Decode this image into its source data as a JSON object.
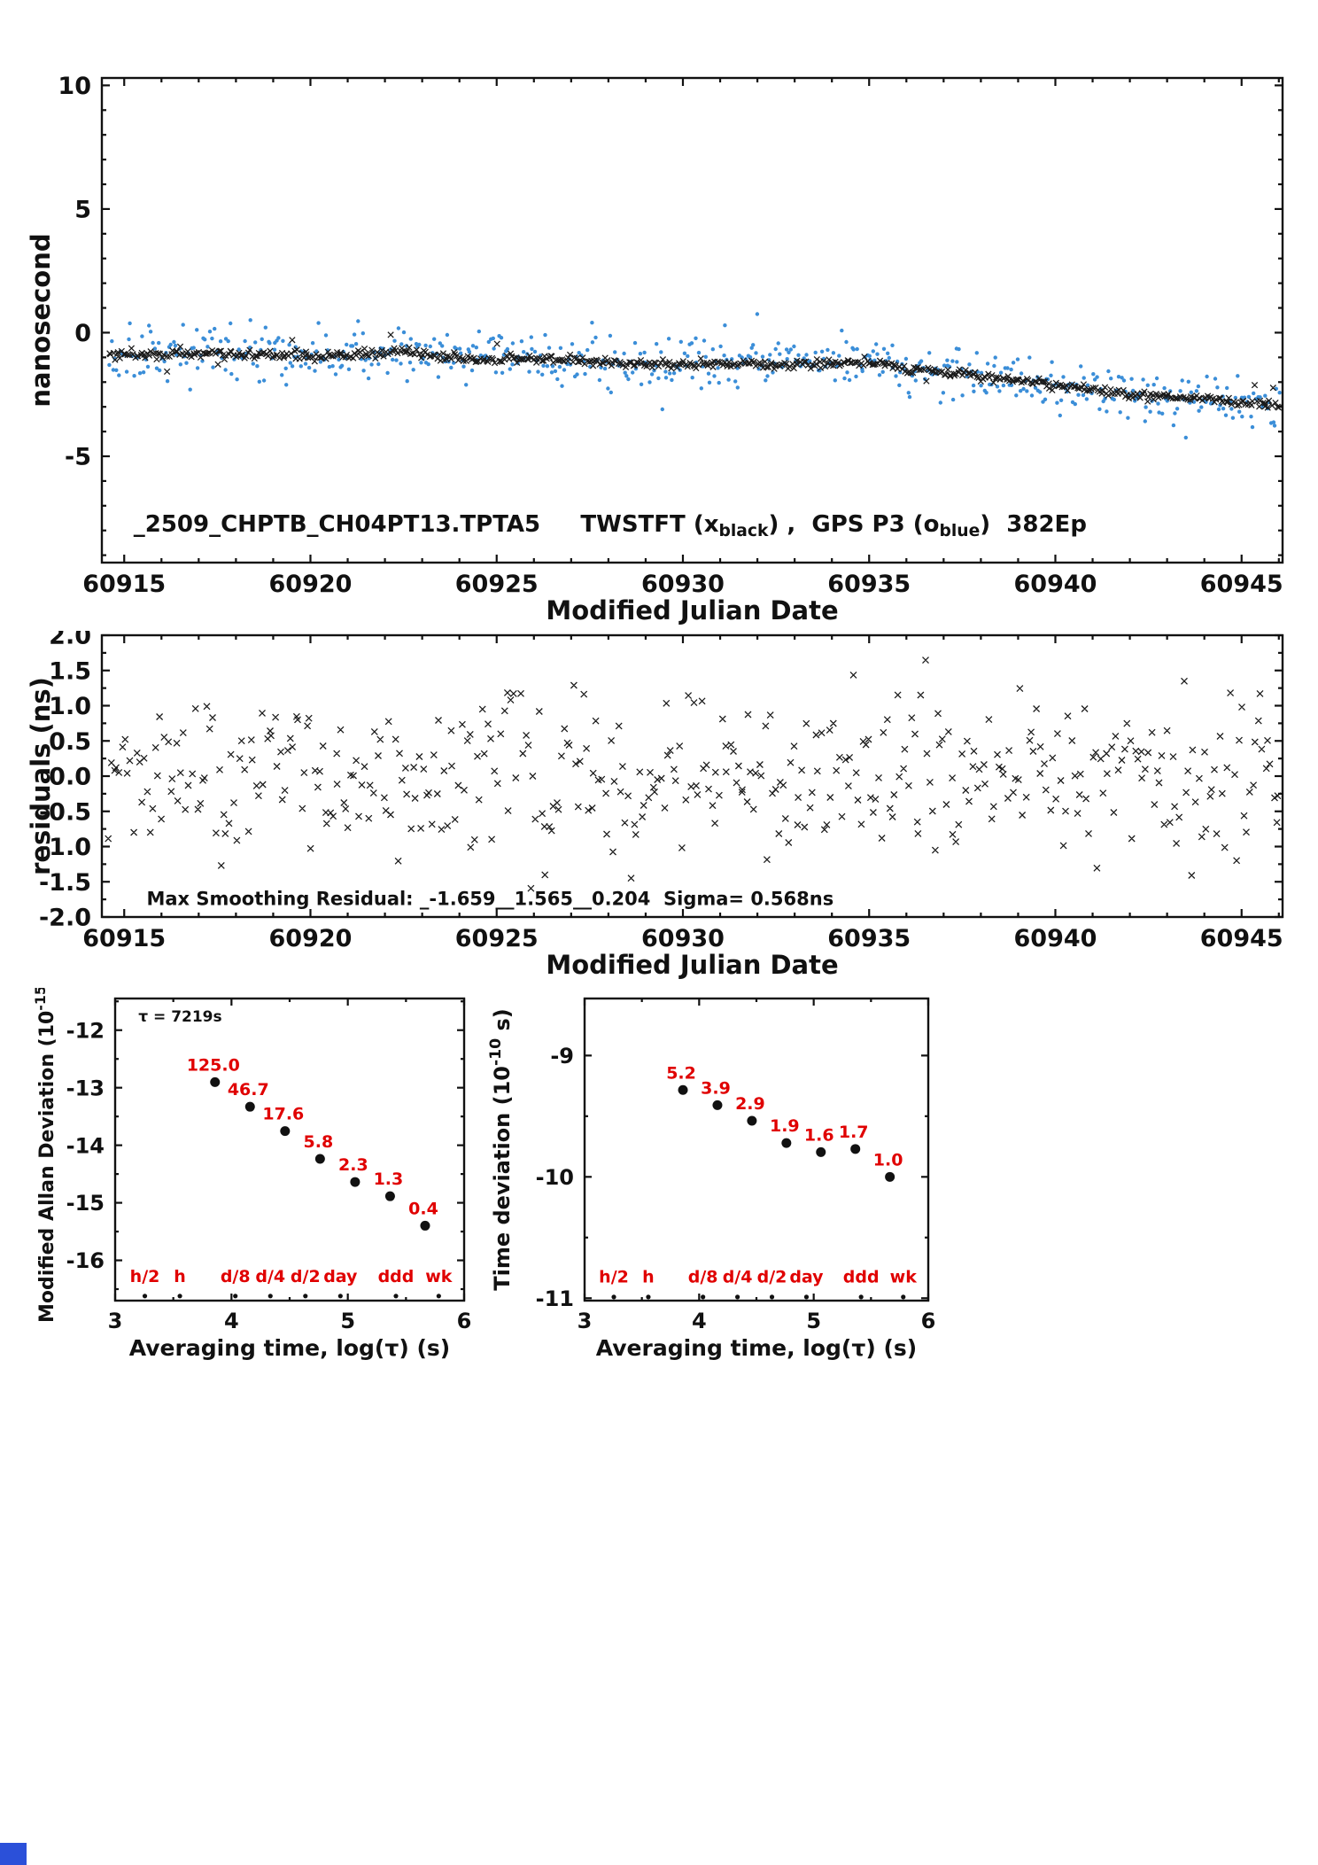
{
  "page": {
    "background": "#ffffff",
    "corner_square_color": "#2b50d9"
  },
  "colors": {
    "black": "#111111",
    "red": "#e00000",
    "blue": "#3b8ed8"
  },
  "chart_data": [
    {
      "id": "top-timeseries",
      "type": "scatter",
      "title": "",
      "xlabel": "Modified Julian Date",
      "ylabel": "nanosecond",
      "xlim": [
        60914.4,
        60946.1
      ],
      "ylim": [
        -9.3,
        10.3
      ],
      "xticks": [
        {
          "v": 60915,
          "label": "60915"
        },
        {
          "v": 60920,
          "label": "60920"
        },
        {
          "v": 60925,
          "label": "60925"
        },
        {
          "v": 60930,
          "label": "60930"
        },
        {
          "v": 60935,
          "label": "60935"
        },
        {
          "v": 60940,
          "label": "60940"
        },
        {
          "v": 60945,
          "label": "60945"
        }
      ],
      "yticks": [
        {
          "v": -5,
          "label": "-5"
        },
        {
          "v": 0,
          "label": "0"
        },
        {
          "v": 5,
          "label": "5"
        },
        {
          "v": 10,
          "label": "10"
        }
      ],
      "xminor_step": 1,
      "yminor_step": 1,
      "annotations": [
        {
          "x": 60915.25,
          "y": -8.05,
          "size": 26,
          "color": "#111111",
          "rich": [
            {
              "t": "_2509_CHPTB_CH04PT13.TPTA5     TWSTFT (x"
            },
            {
              "t": "black",
              "sub": true
            },
            {
              "t": ") ,  GPS P3 (o"
            },
            {
              "t": "blue",
              "sub": true
            },
            {
              "t": ")  382Ep"
            }
          ]
        }
      ],
      "series": [
        {
          "name": "GPS P3 (o blue)",
          "marker": "dot",
          "size": 2.2,
          "color": "#3b8ed8",
          "gen": {
            "seed": 11,
            "n": 620,
            "x0": 60914.6,
            "x1": 60946.0,
            "noise": 0.52,
            "outlier_p": 0.05,
            "outlier_amp": 1.5,
            "trend": [
              [
                60914.6,
                -0.85
              ],
              [
                60916,
                -0.9
              ],
              [
                60917.5,
                -0.8
              ],
              [
                60919,
                -0.95
              ],
              [
                60920.5,
                -0.9
              ],
              [
                60922,
                -0.8
              ],
              [
                60922.5,
                -0.75
              ],
              [
                60923.5,
                -1.0
              ],
              [
                60925,
                -1.1
              ],
              [
                60926.5,
                -1.05
              ],
              [
                60928,
                -1.2
              ],
              [
                60929.5,
                -1.3
              ],
              [
                60931,
                -1.25
              ],
              [
                60932.5,
                -1.3
              ],
              [
                60934,
                -1.25
              ],
              [
                60935,
                -1.2
              ],
              [
                60936,
                -1.45
              ],
              [
                60937.5,
                -1.65
              ],
              [
                60939,
                -1.95
              ],
              [
                60940.5,
                -2.2
              ],
              [
                60942,
                -2.5
              ],
              [
                60943.5,
                -2.65
              ],
              [
                60945,
                -2.8
              ],
              [
                60946,
                -2.95
              ]
            ]
          }
        },
        {
          "name": "TWSTFT (x black)",
          "marker": "x",
          "size": 3.2,
          "color": "#1a1a1a",
          "gen": {
            "seed": 5,
            "n": 640,
            "x0": 60914.6,
            "x1": 60946.0,
            "noise": 0.085,
            "outlier_p": 0.02,
            "outlier_amp": 0.9,
            "trend": [
              [
                60914.6,
                -0.85
              ],
              [
                60916,
                -0.9
              ],
              [
                60917.5,
                -0.8
              ],
              [
                60919,
                -0.95
              ],
              [
                60920.5,
                -0.9
              ],
              [
                60922,
                -0.8
              ],
              [
                60922.5,
                -0.75
              ],
              [
                60923.5,
                -1.0
              ],
              [
                60925,
                -1.1
              ],
              [
                60926.5,
                -1.05
              ],
              [
                60928,
                -1.2
              ],
              [
                60929.5,
                -1.3
              ],
              [
                60931,
                -1.25
              ],
              [
                60932.5,
                -1.3
              ],
              [
                60934,
                -1.25
              ],
              [
                60935,
                -1.2
              ],
              [
                60936,
                -1.45
              ],
              [
                60937.5,
                -1.65
              ],
              [
                60939,
                -1.95
              ],
              [
                60940.5,
                -2.2
              ],
              [
                60942,
                -2.5
              ],
              [
                60943.5,
                -2.65
              ],
              [
                60945,
                -2.8
              ],
              [
                60946,
                -2.95
              ]
            ]
          }
        }
      ]
    },
    {
      "id": "residuals",
      "type": "scatter",
      "title": "",
      "xlabel": "Modified Julian Date",
      "ylabel": "residuals (ns)",
      "xlim": [
        60914.4,
        60946.1
      ],
      "ylim": [
        -2.0,
        2.0
      ],
      "xticks": [
        {
          "v": 60915,
          "label": "60915"
        },
        {
          "v": 60920,
          "label": "60920"
        },
        {
          "v": 60925,
          "label": "60925"
        },
        {
          "v": 60930,
          "label": "60930"
        },
        {
          "v": 60935,
          "label": "60935"
        },
        {
          "v": 60940,
          "label": "60940"
        },
        {
          "v": 60945,
          "label": "60945"
        }
      ],
      "yticks": [
        {
          "v": -2.0,
          "label": "-2.0"
        },
        {
          "v": -1.5,
          "label": "-1.5"
        },
        {
          "v": -1.0,
          "label": "-1.0"
        },
        {
          "v": -0.5,
          "label": "-0.5"
        },
        {
          "v": 0.0,
          "label": "0.0"
        },
        {
          "v": 0.5,
          "label": "0.5"
        },
        {
          "v": 1.0,
          "label": "1.0"
        },
        {
          "v": 1.5,
          "label": "1.5"
        },
        {
          "v": 2.0,
          "label": "2.0"
        }
      ],
      "xminor_step": 1,
      "yminor_step": 0.25,
      "annotations": [
        {
          "x": 60915.6,
          "y": -1.83,
          "size": 21,
          "color": "#111111",
          "rich": [
            {
              "t": "Max Smoothing Residual: _-1.659__1.565__0.204  Sigma= 0.568ns"
            }
          ]
        }
      ],
      "series": [
        {
          "name": "smoothing residuals",
          "marker": "x",
          "size": 3.5,
          "color": "#1a1a1a",
          "gen": {
            "seed": 23,
            "n": 440,
            "x0": 60914.6,
            "x1": 60946.0,
            "noise": 0.568,
            "clip": 1.66,
            "trend": [
              [
                60914.6,
                0.0
              ],
              [
                60946.0,
                0.0
              ]
            ]
          }
        }
      ]
    },
    {
      "id": "mdev",
      "type": "scatter",
      "title": "",
      "xlabel": "Averaging time, log(τ) (s)",
      "ylabel_rich": [
        {
          "t": "Modified Allan Deviation (10"
        },
        {
          "t": "-15",
          "sup": true
        },
        {
          "t": ")"
        }
      ],
      "xlim": [
        3,
        6
      ],
      "ylim": [
        -16.7,
        -11.45
      ],
      "xticks": [
        {
          "v": 3,
          "label": "3"
        },
        {
          "v": 4,
          "label": "4"
        },
        {
          "v": 5,
          "label": "5"
        },
        {
          "v": 6,
          "label": "6"
        }
      ],
      "yticks": [
        {
          "v": -12,
          "label": "-12"
        },
        {
          "v": -13,
          "label": "-13"
        },
        {
          "v": -14,
          "label": "-14"
        },
        {
          "v": -15,
          "label": "-15"
        },
        {
          "v": -16,
          "label": "-16"
        }
      ],
      "xminor_step": 0.5,
      "yminor_step": 0.5,
      "annotations": [
        {
          "x": 3.2,
          "y": -11.85,
          "size": 17,
          "color": "#111111",
          "rich": [
            {
              "t": "τ = 7219s"
            }
          ]
        }
      ],
      "labeled_points": {
        "color": "#111111",
        "label_color": "#e00000",
        "label_size": 19,
        "r": 5.5,
        "points": [
          {
            "tau_s": 7219,
            "x": 3.8585,
            "y": -12.903,
            "value": 125.0,
            "label": "125.0"
          },
          {
            "tau_s": 14438,
            "x": 4.1595,
            "y": -13.331,
            "value": 46.7,
            "label": "46.7"
          },
          {
            "tau_s": 28876,
            "x": 4.4606,
            "y": -13.754,
            "value": 17.6,
            "label": "17.6"
          },
          {
            "tau_s": 57752,
            "x": 4.7616,
            "y": -14.237,
            "value": 5.8,
            "label": "5.8"
          },
          {
            "tau_s": 115505,
            "x": 5.0626,
            "y": -14.638,
            "value": 2.3,
            "label": "2.3"
          },
          {
            "tau_s": 231010,
            "x": 5.3636,
            "y": -14.886,
            "value": 1.3,
            "label": "1.3"
          },
          {
            "tau_s": 462019,
            "x": 5.6647,
            "y": -15.398,
            "value": 0.4,
            "label": "0.4"
          }
        ]
      },
      "axis_markers": {
        "marker_y": -16.62,
        "label_y": -16.38,
        "r": 2.6,
        "color": "#111111",
        "label_color": "#e00000",
        "label_size": 19,
        "items": [
          {
            "tau_s": 1800,
            "x": 3.2553,
            "label": "h/2"
          },
          {
            "tau_s": 3600,
            "x": 3.5563,
            "label": "h"
          },
          {
            "tau_s": 10800,
            "x": 4.0334,
            "label": "d/8"
          },
          {
            "tau_s": 21600,
            "x": 4.3345,
            "label": "d/4"
          },
          {
            "tau_s": 43200,
            "x": 4.6355,
            "label": "d/2"
          },
          {
            "tau_s": 86400,
            "x": 4.9365,
            "label": "day"
          },
          {
            "tau_s": 259200,
            "x": 5.4137,
            "label": "ddd"
          },
          {
            "tau_s": 604800,
            "x": 5.7817,
            "label": "wk"
          }
        ]
      }
    },
    {
      "id": "tdev",
      "type": "scatter",
      "title": "",
      "xlabel": "Averaging time, log(τ) (s)",
      "ylabel_rich": [
        {
          "t": "Time deviation (10"
        },
        {
          "t": "-10",
          "sup": true
        },
        {
          "t": " s)"
        }
      ],
      "xlim": [
        3,
        6
      ],
      "ylim": [
        -11.02,
        -8.53
      ],
      "xticks": [
        {
          "v": 3,
          "label": "3"
        },
        {
          "v": 4,
          "label": "4"
        },
        {
          "v": 5,
          "label": "5"
        },
        {
          "v": 6,
          "label": "6"
        }
      ],
      "yticks": [
        {
          "v": -9,
          "label": "-9"
        },
        {
          "v": -10,
          "label": "-10"
        },
        {
          "v": -11,
          "label": "-11"
        }
      ],
      "xminor_step": 0.5,
      "yminor_step": 0.5,
      "annotations": [],
      "labeled_points": {
        "color": "#111111",
        "label_color": "#e00000",
        "label_size": 19,
        "r": 5.5,
        "points": [
          {
            "tau_s": 7219,
            "x": 3.8585,
            "y": -9.284,
            "value": 5.2,
            "label": "5.2"
          },
          {
            "tau_s": 14438,
            "x": 4.1595,
            "y": -9.409,
            "value": 3.9,
            "label": "3.9"
          },
          {
            "tau_s": 28876,
            "x": 4.4606,
            "y": -9.538,
            "value": 2.9,
            "label": "2.9"
          },
          {
            "tau_s": 57752,
            "x": 4.7616,
            "y": -9.721,
            "value": 1.9,
            "label": "1.9"
          },
          {
            "tau_s": 115505,
            "x": 5.0626,
            "y": -9.796,
            "value": 1.6,
            "label": "1.6"
          },
          {
            "tau_s": 231010,
            "x": 5.3636,
            "y": -9.77,
            "value": 1.7,
            "label": "1.7"
          },
          {
            "tau_s": 462019,
            "x": 5.6647,
            "y": -10.0,
            "value": 1.0,
            "label": "1.0"
          }
        ]
      },
      "axis_markers": {
        "marker_y": -10.99,
        "label_y": -10.87,
        "r": 2.6,
        "color": "#111111",
        "label_color": "#e00000",
        "label_size": 19,
        "items": [
          {
            "tau_s": 1800,
            "x": 3.2553,
            "label": "h/2"
          },
          {
            "tau_s": 3600,
            "x": 3.5563,
            "label": "h"
          },
          {
            "tau_s": 10800,
            "x": 4.0334,
            "label": "d/8"
          },
          {
            "tau_s": 21600,
            "x": 4.3345,
            "label": "d/4"
          },
          {
            "tau_s": 43200,
            "x": 4.6355,
            "label": "d/2"
          },
          {
            "tau_s": 86400,
            "x": 4.9365,
            "label": "day"
          },
          {
            "tau_s": 259200,
            "x": 5.4137,
            "label": "ddd"
          },
          {
            "tau_s": 604800,
            "x": 5.7817,
            "label": "wk"
          }
        ]
      }
    }
  ]
}
